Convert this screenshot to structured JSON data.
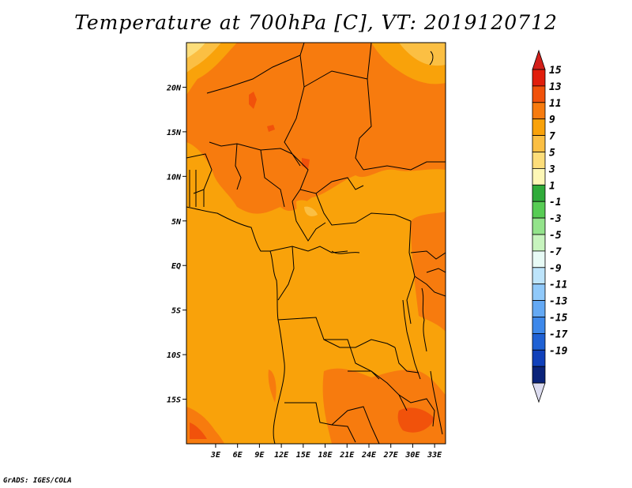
{
  "title": "Temperature at 700hPa [C], VT: 2019120712",
  "credit": "GrADS: IGES/COLA",
  "map": {
    "lon_range": [
      -1,
      34.5
    ],
    "lat_range": [
      -20,
      25
    ],
    "x_ticks": [
      {
        "lon": 3,
        "label": "3E"
      },
      {
        "lon": 6,
        "label": "6E"
      },
      {
        "lon": 9,
        "label": "9E"
      },
      {
        "lon": 12,
        "label": "12E"
      },
      {
        "lon": 15,
        "label": "15E"
      },
      {
        "lon": 18,
        "label": "18E"
      },
      {
        "lon": 21,
        "label": "21E"
      },
      {
        "lon": 24,
        "label": "24E"
      },
      {
        "lon": 27,
        "label": "27E"
      },
      {
        "lon": 30,
        "label": "30E"
      },
      {
        "lon": 33,
        "label": "33E"
      }
    ],
    "y_ticks": [
      {
        "lat": 20,
        "label": "20N"
      },
      {
        "lat": 15,
        "label": "15N"
      },
      {
        "lat": 10,
        "label": "10N"
      },
      {
        "lat": 5,
        "label": "5N"
      },
      {
        "lat": 0,
        "label": "EQ"
      },
      {
        "lat": -5,
        "label": "5S"
      },
      {
        "lat": -10,
        "label": "10S"
      },
      {
        "lat": -15,
        "label": "15S"
      }
    ],
    "base_fill": "#f9a20a"
  },
  "colorbar": {
    "levels": [
      "15",
      "13",
      "11",
      "9",
      "7",
      "5",
      "3",
      "1",
      "-1",
      "-3",
      "-5",
      "-7",
      "-9",
      "-11",
      "-13",
      "-15",
      "-17",
      "-19"
    ],
    "colors": [
      "#e11e0c",
      "#f1520b",
      "#f77b0e",
      "#f9a20a",
      "#fbbf43",
      "#fcdd7a",
      "#fdf7b6",
      "#2fab3a",
      "#57cc54",
      "#93e38b",
      "#c7f4be",
      "#e8fbf6",
      "#bde4fb",
      "#90c9fa",
      "#64a9f4",
      "#3d88ea",
      "#1f61d4",
      "#1040ba",
      "#0a237a"
    ],
    "top_arrow_color": "#d31f1a",
    "bottom_arrow_color": "#dcdcf0"
  }
}
